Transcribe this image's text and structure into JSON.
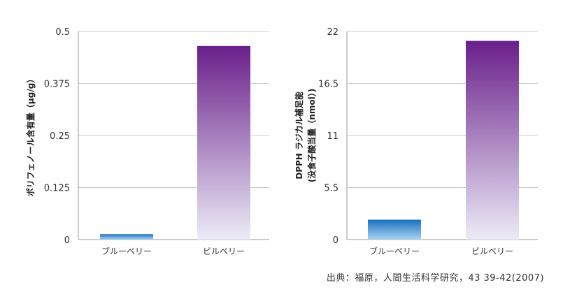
{
  "chart_data": [
    {
      "type": "bar",
      "categories": [
        "ブルーベリー",
        "ビルベリー"
      ],
      "values": [
        0.013,
        0.465
      ],
      "ylabel": "ポリフェノール含有量（μg/g）",
      "ylim": [
        0,
        0.5
      ],
      "yticks": [
        "0",
        "0.125",
        "0.25",
        "0.375",
        "0.5"
      ],
      "grid": true
    },
    {
      "type": "bar",
      "categories": [
        "ブルーベリー",
        "ビルベリー"
      ],
      "values": [
        2.1,
        21.0
      ],
      "ylabel": [
        "DPPH ラジカル補足能",
        "(没食子酸当量（nmol）)"
      ],
      "ylim": [
        0,
        22
      ],
      "yticks": [
        "0",
        "5.5",
        "11",
        "16.5",
        "22"
      ],
      "grid": true
    }
  ],
  "colors": {
    "blueberry_top": "#1a6fc0",
    "blueberry_bottom": "#a8d4f2",
    "bilberry_top": "#6a1f8a",
    "bilberry_bottom": "#ecebf7"
  },
  "source": "出典：福原，人間生活科学研究，43 39-42(2007)"
}
